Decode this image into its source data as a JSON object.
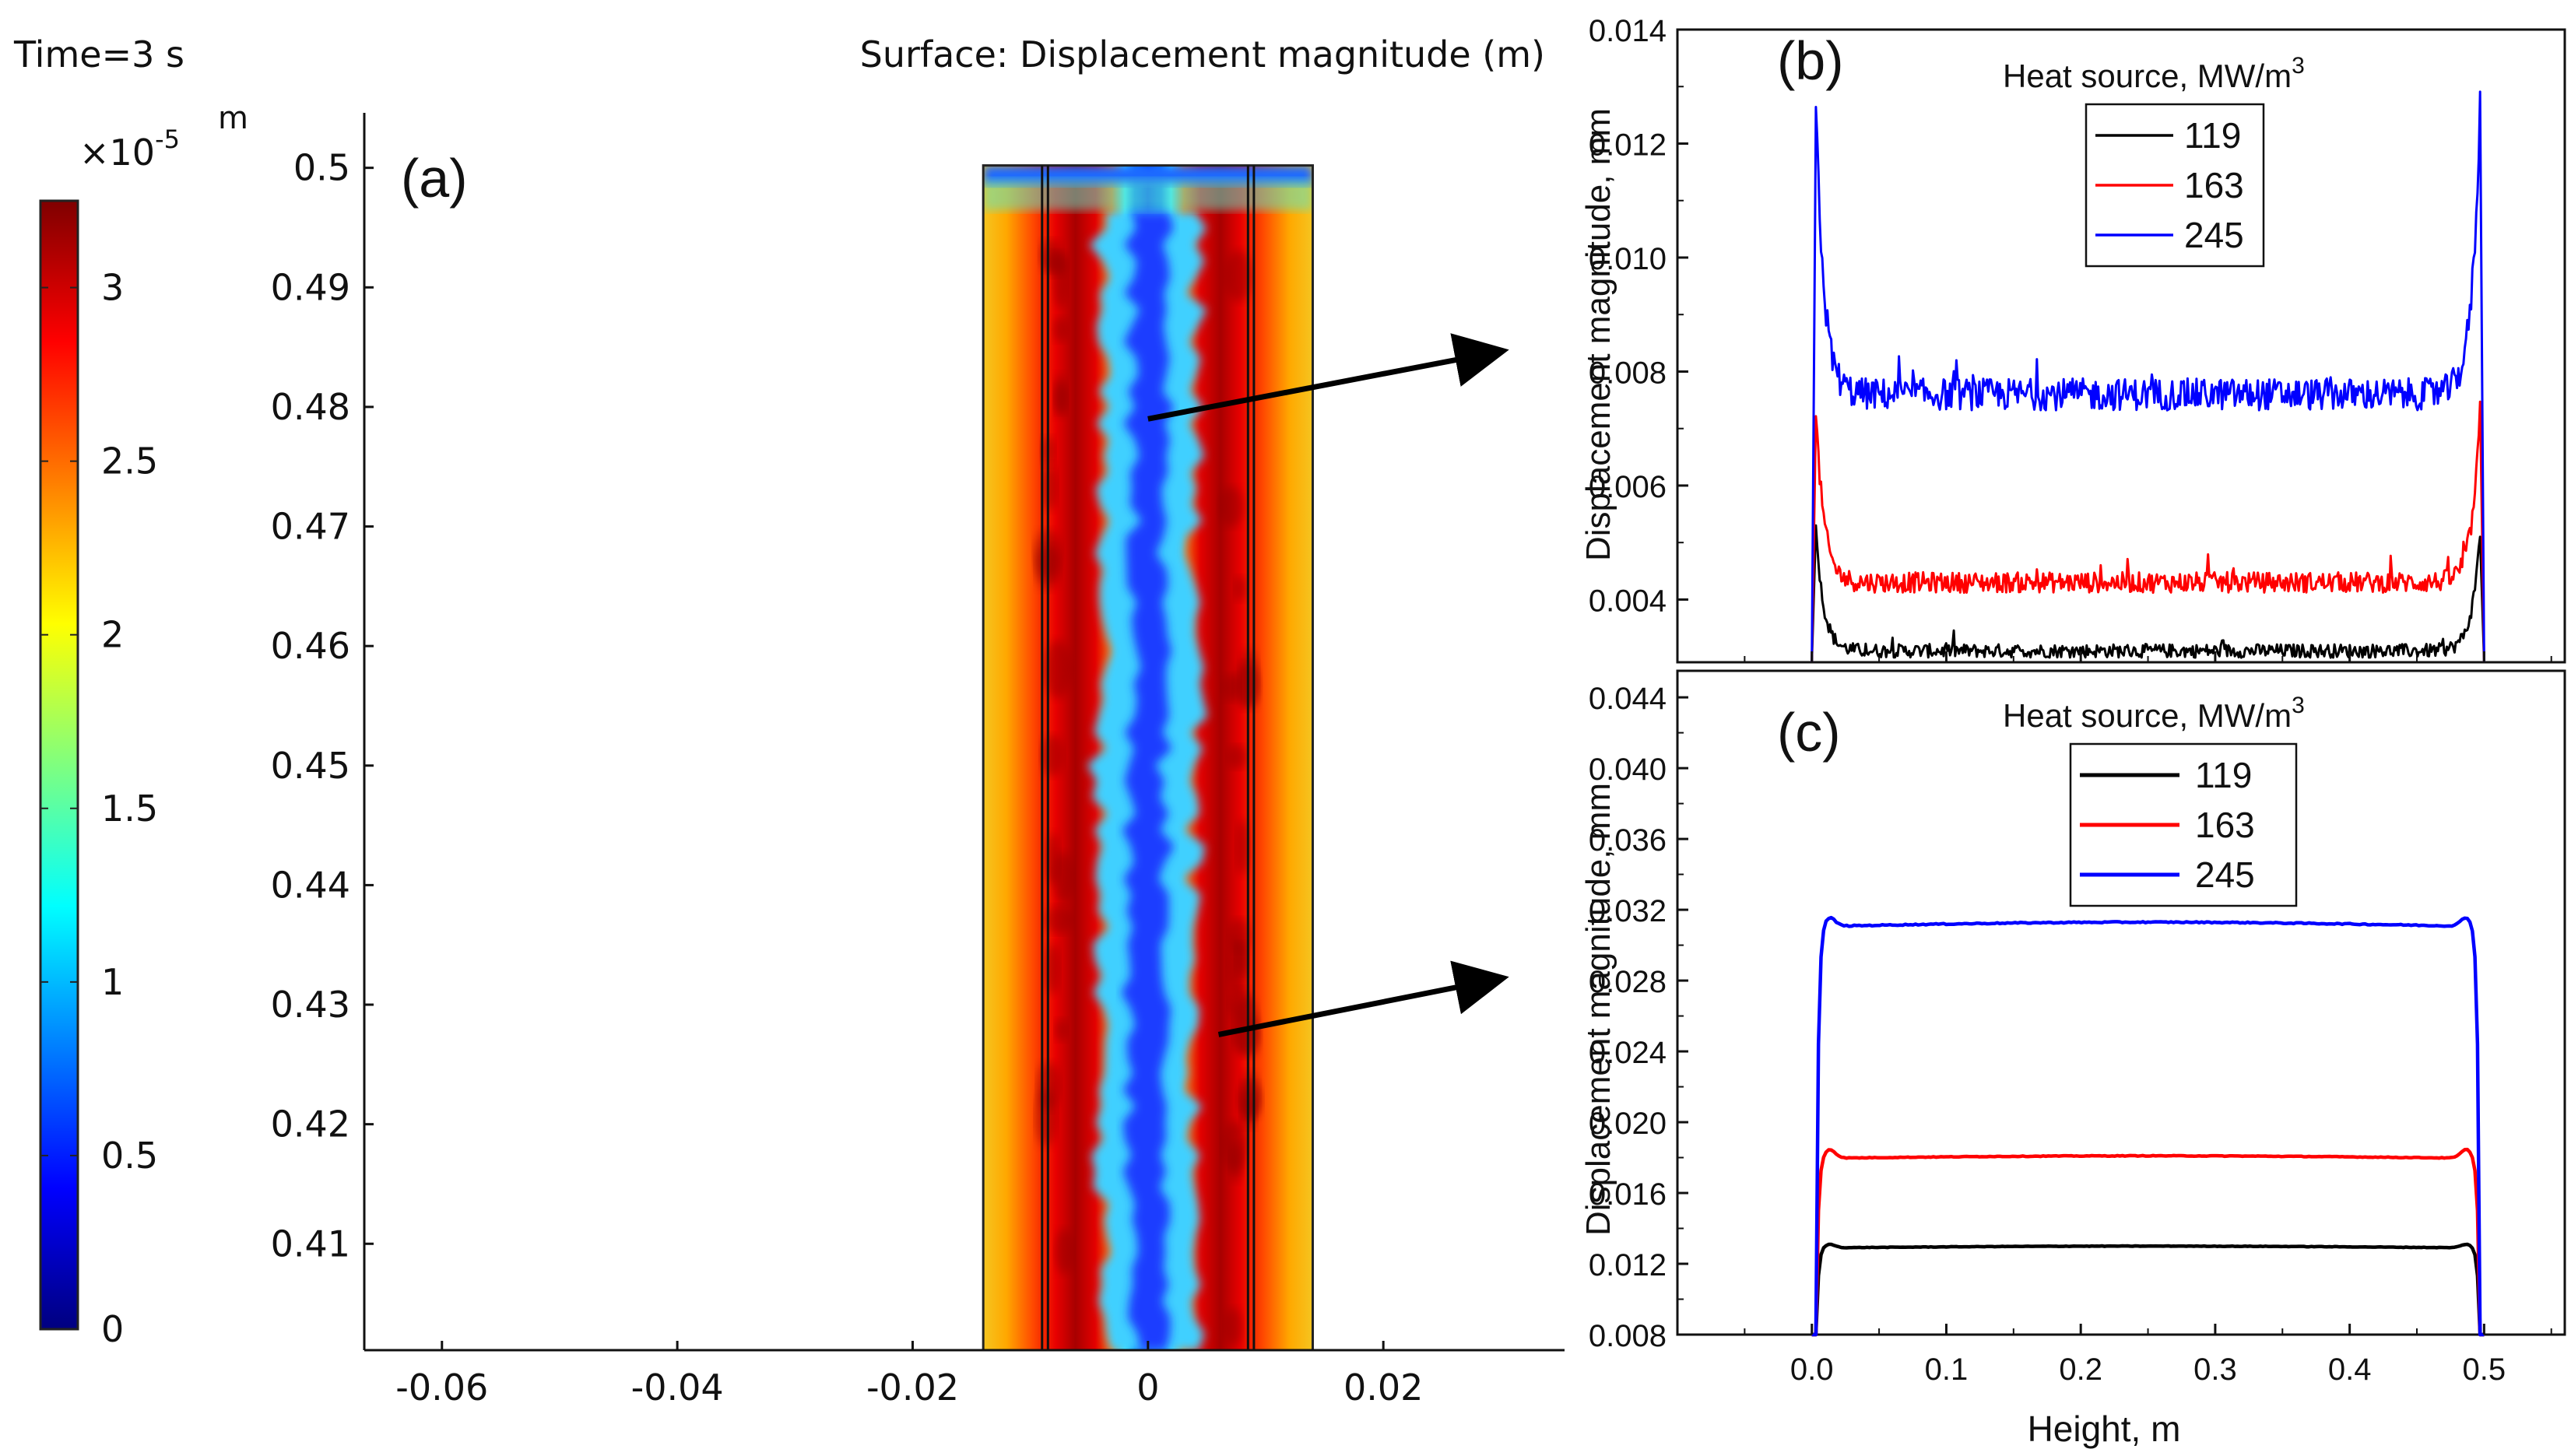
{
  "panel_a": {
    "panel_label": "(a)",
    "time_text": "Time=3 s",
    "surface_title": "Surface: Displacement magnitude (m)",
    "colorbar": {
      "exponent": "×10",
      "exponent_power": "-5",
      "unit": "m",
      "ticks": [
        "0",
        "0.5",
        "1",
        "1.5",
        "2",
        "2.5",
        "3"
      ],
      "tick_values": [
        0,
        0.5,
        1,
        1.5,
        2,
        2.5,
        3
      ],
      "max": 3.25,
      "colors": [
        "#00007f",
        "#0000ff",
        "#007fff",
        "#00ffff",
        "#7fff7f",
        "#ffff00",
        "#ff7f00",
        "#ff0000",
        "#7f0000"
      ]
    },
    "y_ticks": [
      "0.5",
      "0.49",
      "0.48",
      "0.47",
      "0.46",
      "0.45",
      "0.44",
      "0.43",
      "0.42",
      "0.41"
    ],
    "y_tick_values": [
      0.5,
      0.49,
      0.48,
      0.47,
      0.46,
      0.45,
      0.44,
      0.43,
      0.42,
      0.41
    ],
    "y_range": [
      0.4011,
      0.5046
    ],
    "x_ticks": [
      "-0.06",
      "-0.04",
      "-0.02",
      "0",
      "0.02"
    ],
    "x_tick_values": [
      -0.06,
      -0.04,
      -0.02,
      0,
      0.02
    ],
    "x_range": [
      -0.0666,
      0.0354
    ],
    "domain": {
      "x_min": -0.014,
      "x_max": 0.014,
      "y_min": 0.4011,
      "y_max": 0.5002
    },
    "inner_lines_x": [
      -0.009,
      -0.0085,
      0.0085,
      0.009
    ],
    "arrows": [
      {
        "from": [
          0.0,
          0.479
        ],
        "to": "panel_b"
      },
      {
        "from": [
          0.006,
          0.4275
        ],
        "to": "panel_c"
      }
    ]
  },
  "chart_data": [
    {
      "type": "line",
      "panel_label": "(b)",
      "xlabel": "",
      "ylabel": "Displacement magnitude, mm",
      "xlim": [
        -0.1,
        0.56
      ],
      "ylim": [
        0.0029,
        0.014
      ],
      "y_ticks": [
        "0.004",
        "0.006",
        "0.008",
        "0.010",
        "0.012",
        "0.014"
      ],
      "y_tick_values": [
        0.004,
        0.006,
        0.008,
        0.01,
        0.012,
        0.014
      ],
      "legend_title": "Heat source, MW/m",
      "legend_title_sup": "3",
      "legend_position": "top-center",
      "series": [
        {
          "name": "119",
          "color": "#000000",
          "peak": 0.0052,
          "plateau": 0.0031,
          "noise": 0.00012
        },
        {
          "name": "163",
          "color": "#ff0000",
          "peak": 0.0073,
          "plateau": 0.0043,
          "noise": 0.00018
        },
        {
          "name": "245",
          "color": "#0000ff",
          "peak": 0.0127,
          "plateau": 0.0076,
          "noise": 0.00028
        }
      ]
    },
    {
      "type": "line",
      "panel_label": "(c)",
      "xlabel": "Height, m",
      "ylabel": "Displacement magnitude, mm",
      "xlim": [
        -0.1,
        0.56
      ],
      "ylim": [
        0.008,
        0.0455
      ],
      "x_ticks": [
        "0.0",
        "0.1",
        "0.2",
        "0.3",
        "0.4",
        "0.5"
      ],
      "x_tick_values": [
        0.0,
        0.1,
        0.2,
        0.3,
        0.4,
        0.5
      ],
      "y_ticks": [
        "0.008",
        "0.012",
        "0.016",
        "0.020",
        "0.024",
        "0.028",
        "0.032",
        "0.036",
        "0.040",
        "0.044"
      ],
      "y_tick_values": [
        0.008,
        0.012,
        0.016,
        0.02,
        0.024,
        0.028,
        0.032,
        0.036,
        0.04,
        0.044
      ],
      "legend_title": "Heat source, MW/m",
      "legend_title_sup": "3",
      "legend_position": "top-center",
      "series": [
        {
          "name": "119",
          "color": "#000000",
          "peak": 0.0132,
          "plateau": 0.013
        },
        {
          "name": "163",
          "color": "#ff0000",
          "peak": 0.0186,
          "plateau": 0.0181
        },
        {
          "name": "245",
          "color": "#0000ff",
          "peak": 0.0318,
          "plateau": 0.0313
        }
      ]
    }
  ]
}
